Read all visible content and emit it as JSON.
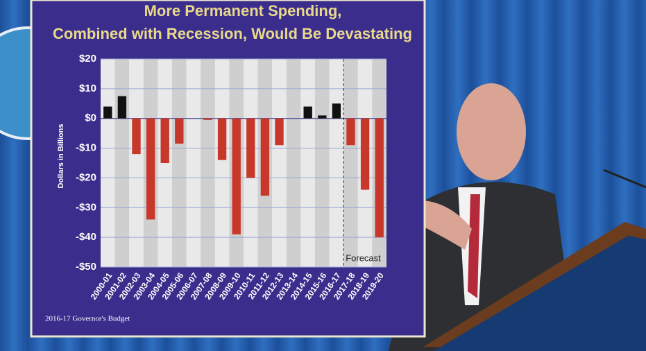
{
  "chart_data": {
    "type": "bar",
    "title": [
      "More Permanent Spending,",
      "Combined with Recession, Would Be Devastating"
    ],
    "y_label": "Dollars in Billions",
    "annotation": "Forecast",
    "footer": "2016-17 Governor's Budget",
    "categories": [
      "2000-01",
      "2001-02",
      "2002-03",
      "2003-04",
      "2004-05",
      "2005-06",
      "2006-07",
      "2007-08",
      "2008-09",
      "2009-10",
      "2010-11",
      "2011-12",
      "2012-13",
      "2013-14",
      "2014-15",
      "2015-16",
      "2016-17",
      "2017-18",
      "2018-19",
      "2019-20"
    ],
    "values": [
      4,
      7.5,
      -12,
      -34,
      -15,
      -8.5,
      0,
      -0.5,
      -14,
      -39,
      -20,
      -26,
      -9,
      0,
      4,
      1,
      5,
      -9,
      -24,
      -40
    ],
    "positive_color": "#111111",
    "negative_color": "#c8382a",
    "ylim": [
      -50,
      20
    ],
    "yticks": [
      {
        "value": 20,
        "label": "$20"
      },
      {
        "value": 10,
        "label": "$10"
      },
      {
        "value": 0,
        "label": "$0"
      },
      {
        "value": -10,
        "label": "-$10"
      },
      {
        "value": -20,
        "label": "-$20"
      },
      {
        "value": -30,
        "label": "-$30"
      },
      {
        "value": -40,
        "label": "-$40"
      },
      {
        "value": -50,
        "label": "-$50"
      }
    ],
    "grid": true
  }
}
